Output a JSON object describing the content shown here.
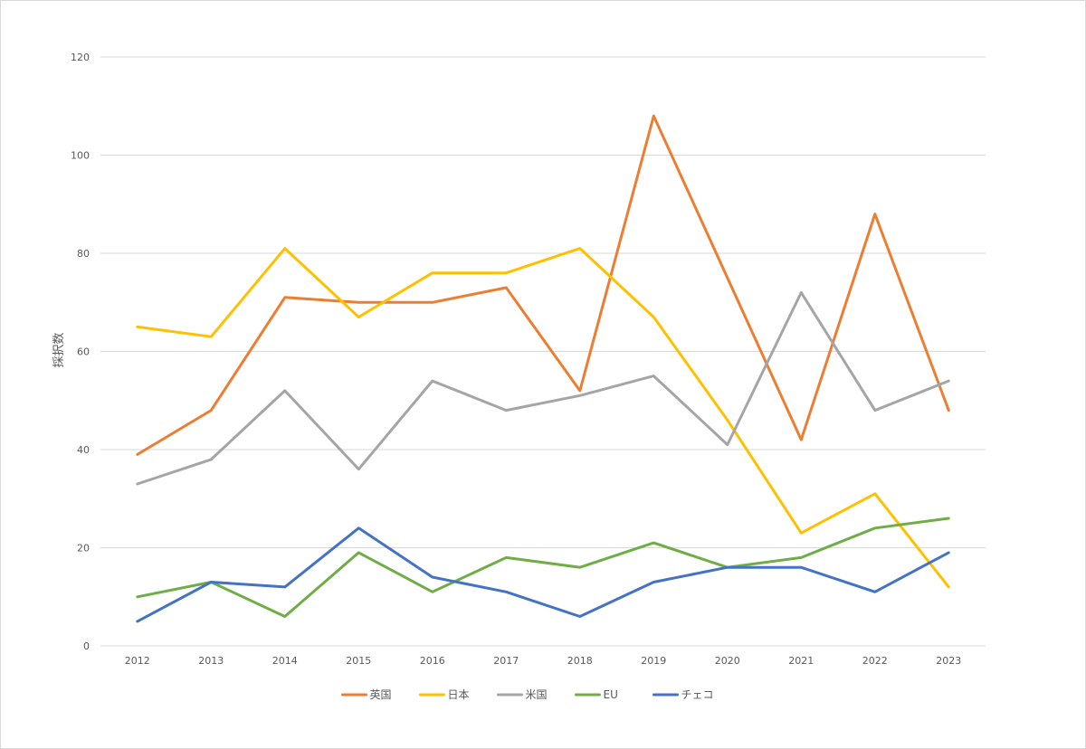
{
  "chart_data": {
    "type": "line",
    "title": "",
    "xlabel": "",
    "ylabel": "採択数",
    "ylim": [
      0,
      120
    ],
    "yticks": [
      0,
      20,
      40,
      60,
      80,
      100,
      120
    ],
    "grid": true,
    "legend_position": "bottom",
    "categories": [
      "2012",
      "2013",
      "2014",
      "2015",
      "2016",
      "2017",
      "2018",
      "2019",
      "2020",
      "2021",
      "2022",
      "2023"
    ],
    "series": [
      {
        "name": "英国",
        "color": "#ED7D31",
        "values": [
          39,
          48,
          71,
          70,
          70,
          73,
          52,
          108,
          75,
          42,
          88,
          48
        ]
      },
      {
        "name": "日本",
        "color": "#FFC000",
        "values": [
          65,
          63,
          81,
          67,
          76,
          76,
          81,
          67,
          46,
          23,
          31,
          12
        ]
      },
      {
        "name": "米国",
        "color": "#A5A5A5",
        "values": [
          33,
          38,
          52,
          36,
          54,
          48,
          51,
          55,
          41,
          72,
          48,
          54
        ]
      },
      {
        "name": "EU",
        "color": "#70AD47",
        "values": [
          10,
          13,
          6,
          19,
          11,
          18,
          16,
          21,
          16,
          18,
          24,
          26
        ]
      },
      {
        "name": "チェコ",
        "color": "#4472C4",
        "values": [
          5,
          13,
          12,
          24,
          14,
          11,
          6,
          13,
          16,
          16,
          11,
          19
        ]
      }
    ]
  }
}
